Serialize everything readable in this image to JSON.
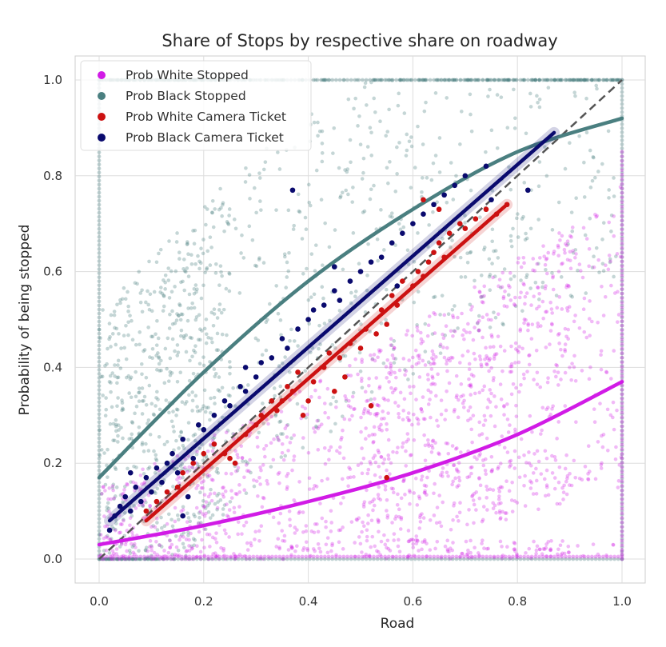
{
  "chart_data": {
    "type": "scatter",
    "title": "Share of Stops by respective share on roadway",
    "xlabel": "Road",
    "ylabel": "Probability of being stopped",
    "xlim": [
      -0.05,
      1.05
    ],
    "ylim": [
      -0.05,
      1.04
    ],
    "x_ticks": [
      0.0,
      0.2,
      0.4,
      0.6,
      0.8,
      1.0
    ],
    "y_ticks": [
      0.0,
      0.2,
      0.4,
      0.6,
      0.8,
      1.0
    ],
    "x_tick_labels": [
      "0.0",
      "0.2",
      "0.4",
      "0.6",
      "0.8",
      "1.0"
    ],
    "y_tick_labels": [
      "0.0",
      "0.2",
      "0.4",
      "0.6",
      "0.8",
      "1.0"
    ],
    "grid": true,
    "legend_position": "top-left",
    "reference_line": {
      "style": "dashed",
      "color": "#555555",
      "x": [
        0,
        1
      ],
      "y": [
        0,
        1
      ]
    },
    "series": [
      {
        "name": "Prob White Stopped",
        "color": "#d11be6",
        "marker": "point",
        "cloud_description": "dense cloud mostly below diagonal",
        "trend": {
          "x": [
            0,
            0.2,
            0.4,
            0.6,
            0.8,
            1.0
          ],
          "y": [
            0.03,
            0.07,
            0.12,
            0.18,
            0.26,
            0.37
          ]
        }
      },
      {
        "name": "Prob Black Stopped",
        "color": "#4a7f80",
        "marker": "point",
        "cloud_description": "dense cloud mostly above diagonal",
        "trend": {
          "x": [
            0,
            0.2,
            0.4,
            0.6,
            0.8,
            1.0
          ],
          "y": [
            0.17,
            0.39,
            0.58,
            0.73,
            0.85,
            0.92
          ]
        }
      },
      {
        "name": "Prob White Camera Ticket",
        "color": "#cc1111",
        "marker": "point",
        "trend": {
          "x": [
            0.09,
            0.78
          ],
          "y": [
            0.08,
            0.74
          ]
        },
        "points": [
          [
            0.09,
            0.1
          ],
          [
            0.11,
            0.12
          ],
          [
            0.13,
            0.14
          ],
          [
            0.15,
            0.15
          ],
          [
            0.16,
            0.18
          ],
          [
            0.18,
            0.2
          ],
          [
            0.2,
            0.22
          ],
          [
            0.22,
            0.24
          ],
          [
            0.24,
            0.22
          ],
          [
            0.25,
            0.21
          ],
          [
            0.28,
            0.26
          ],
          [
            0.3,
            0.28
          ],
          [
            0.31,
            0.3
          ],
          [
            0.33,
            0.33
          ],
          [
            0.34,
            0.31
          ],
          [
            0.36,
            0.36
          ],
          [
            0.37,
            0.35
          ],
          [
            0.38,
            0.39
          ],
          [
            0.4,
            0.33
          ],
          [
            0.41,
            0.37
          ],
          [
            0.43,
            0.4
          ],
          [
            0.44,
            0.43
          ],
          [
            0.46,
            0.42
          ],
          [
            0.47,
            0.38
          ],
          [
            0.48,
            0.45
          ],
          [
            0.5,
            0.44
          ],
          [
            0.51,
            0.48
          ],
          [
            0.53,
            0.47
          ],
          [
            0.54,
            0.52
          ],
          [
            0.55,
            0.49
          ],
          [
            0.56,
            0.55
          ],
          [
            0.57,
            0.53
          ],
          [
            0.58,
            0.58
          ],
          [
            0.6,
            0.57
          ],
          [
            0.61,
            0.6
          ],
          [
            0.62,
            0.59
          ],
          [
            0.63,
            0.62
          ],
          [
            0.64,
            0.64
          ],
          [
            0.65,
            0.66
          ],
          [
            0.66,
            0.63
          ],
          [
            0.67,
            0.68
          ],
          [
            0.69,
            0.7
          ],
          [
            0.7,
            0.69
          ],
          [
            0.72,
            0.71
          ],
          [
            0.74,
            0.73
          ],
          [
            0.76,
            0.72
          ],
          [
            0.78,
            0.74
          ],
          [
            0.62,
            0.75
          ],
          [
            0.65,
            0.73
          ],
          [
            0.52,
            0.32
          ],
          [
            0.55,
            0.17
          ],
          [
            0.45,
            0.35
          ],
          [
            0.39,
            0.3
          ],
          [
            0.35,
            0.33
          ],
          [
            0.26,
            0.2
          ]
        ]
      },
      {
        "name": "Prob Black Camera Ticket",
        "color": "#0a0a6e",
        "marker": "point",
        "trend": {
          "x": [
            0.02,
            0.87
          ],
          "y": [
            0.08,
            0.89
          ]
        },
        "points": [
          [
            0.02,
            0.06
          ],
          [
            0.03,
            0.09
          ],
          [
            0.04,
            0.11
          ],
          [
            0.05,
            0.13
          ],
          [
            0.06,
            0.1
          ],
          [
            0.07,
            0.15
          ],
          [
            0.08,
            0.12
          ],
          [
            0.09,
            0.17
          ],
          [
            0.1,
            0.14
          ],
          [
            0.11,
            0.19
          ],
          [
            0.12,
            0.16
          ],
          [
            0.13,
            0.2
          ],
          [
            0.14,
            0.22
          ],
          [
            0.15,
            0.18
          ],
          [
            0.16,
            0.25
          ],
          [
            0.17,
            0.13
          ],
          [
            0.18,
            0.21
          ],
          [
            0.19,
            0.28
          ],
          [
            0.2,
            0.27
          ],
          [
            0.22,
            0.3
          ],
          [
            0.24,
            0.33
          ],
          [
            0.25,
            0.32
          ],
          [
            0.27,
            0.36
          ],
          [
            0.28,
            0.35
          ],
          [
            0.3,
            0.38
          ],
          [
            0.31,
            0.41
          ],
          [
            0.33,
            0.42
          ],
          [
            0.35,
            0.46
          ],
          [
            0.36,
            0.44
          ],
          [
            0.38,
            0.48
          ],
          [
            0.4,
            0.5
          ],
          [
            0.41,
            0.52
          ],
          [
            0.43,
            0.53
          ],
          [
            0.45,
            0.56
          ],
          [
            0.46,
            0.54
          ],
          [
            0.48,
            0.58
          ],
          [
            0.5,
            0.6
          ],
          [
            0.52,
            0.62
          ],
          [
            0.54,
            0.63
          ],
          [
            0.56,
            0.66
          ],
          [
            0.58,
            0.68
          ],
          [
            0.6,
            0.7
          ],
          [
            0.62,
            0.72
          ],
          [
            0.64,
            0.74
          ],
          [
            0.66,
            0.76
          ],
          [
            0.68,
            0.78
          ],
          [
            0.7,
            0.8
          ],
          [
            0.74,
            0.82
          ],
          [
            0.37,
            0.77
          ],
          [
            0.82,
            0.77
          ],
          [
            0.75,
            0.75
          ],
          [
            0.06,
            0.18
          ],
          [
            0.16,
            0.09
          ],
          [
            0.28,
            0.4
          ],
          [
            0.45,
            0.61
          ],
          [
            0.57,
            0.57
          ]
        ]
      }
    ]
  }
}
